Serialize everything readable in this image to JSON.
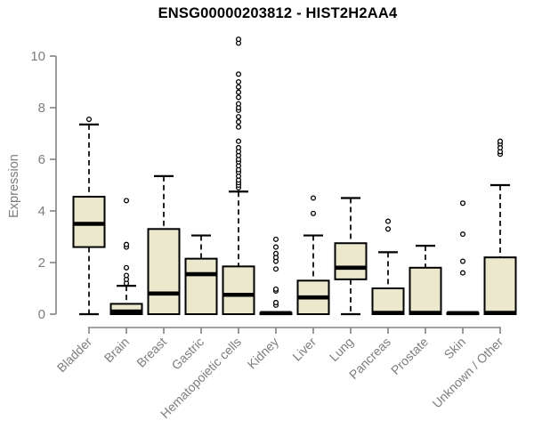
{
  "chart_data": {
    "type": "boxplot",
    "title": "ENSG00000203812 - HIST2H2AA4",
    "ylabel": "Expression",
    "xlabel": "",
    "ylim": [
      0,
      10.8
    ],
    "yticks": [
      "0",
      "2",
      "4",
      "6",
      "8",
      "10"
    ],
    "grid": false,
    "legend": "none",
    "categories": [
      "Bladder",
      "Brain",
      "Breast",
      "Gastric",
      "Hematopoietic cells",
      "Kidney",
      "Liver",
      "Lung",
      "Pancreas",
      "Prostate",
      "Skin",
      "Unknown / Other"
    ],
    "boxes": [
      {
        "category": "Bladder",
        "low": 0,
        "q1": 2.6,
        "median": 3.5,
        "q3": 4.55,
        "high": 7.35,
        "outliers": [
          7.55
        ]
      },
      {
        "category": "Brain",
        "low": 0,
        "q1": 0,
        "median": 0.1,
        "q3": 0.4,
        "high": 1.1,
        "outliers": [
          1.2,
          1.35,
          1.5,
          1.8,
          2.6,
          2.7,
          4.4
        ]
      },
      {
        "category": "Breast",
        "low": 0,
        "q1": 0,
        "median": 0.8,
        "q3": 3.3,
        "high": 5.35,
        "outliers": []
      },
      {
        "category": "Gastric",
        "low": 0,
        "q1": 0,
        "median": 1.55,
        "q3": 2.15,
        "high": 3.05,
        "outliers": []
      },
      {
        "category": "Hematopoietic cells",
        "low": 0,
        "q1": 0,
        "median": 0.75,
        "q3": 1.85,
        "high": 4.75,
        "outliers": [
          4.9,
          5.0,
          5.1,
          5.2,
          5.35,
          5.5,
          5.6,
          5.75,
          5.9,
          6.0,
          6.15,
          6.3,
          6.45,
          6.7,
          7.25,
          7.45,
          7.65,
          7.9,
          8.0,
          8.15,
          8.4,
          8.6,
          8.8,
          9.0,
          9.3,
          10.5,
          10.65
        ]
      },
      {
        "category": "Kidney",
        "low": 0,
        "q1": 0,
        "median": 0.04,
        "q3": 0.05,
        "high": 0.05,
        "outliers": [
          0.35,
          0.45,
          0.9,
          0.97,
          1.75,
          2.05,
          2.2,
          2.35,
          2.6,
          2.9
        ]
      },
      {
        "category": "Liver",
        "low": 0,
        "q1": 0,
        "median": 0.65,
        "q3": 1.3,
        "high": 3.05,
        "outliers": [
          3.9,
          4.5
        ]
      },
      {
        "category": "Lung",
        "low": 0,
        "q1": 1.35,
        "median": 1.8,
        "q3": 2.75,
        "high": 4.5,
        "outliers": []
      },
      {
        "category": "Pancreas",
        "low": 0,
        "q1": 0,
        "median": 0.05,
        "q3": 1.0,
        "high": 2.4,
        "outliers": [
          3.3,
          3.6
        ]
      },
      {
        "category": "Prostate",
        "low": 0,
        "q1": 0,
        "median": 0.05,
        "q3": 1.8,
        "high": 2.65,
        "outliers": []
      },
      {
        "category": "Skin",
        "low": 0,
        "q1": 0,
        "median": 0.04,
        "q3": 0.05,
        "high": 0.05,
        "outliers": [
          1.6,
          2.05,
          3.1,
          4.3
        ]
      },
      {
        "category": "Unknown / Other",
        "low": 0,
        "q1": 0,
        "median": 0.05,
        "q3": 2.2,
        "high": 5.0,
        "outliers": [
          6.2,
          6.3,
          6.45,
          6.6,
          6.7
        ]
      }
    ],
    "colors": {
      "box_fill": "#ECE8CD",
      "box_stroke": "#000000",
      "median": "#000000",
      "whisker": "#000000",
      "outlier_stroke": "#000000",
      "outlier_fill": "#ffffff",
      "axis": "#828282",
      "tick_text": "#7d7d7d",
      "title_text": "#000000",
      "background": "#ffffff"
    }
  }
}
